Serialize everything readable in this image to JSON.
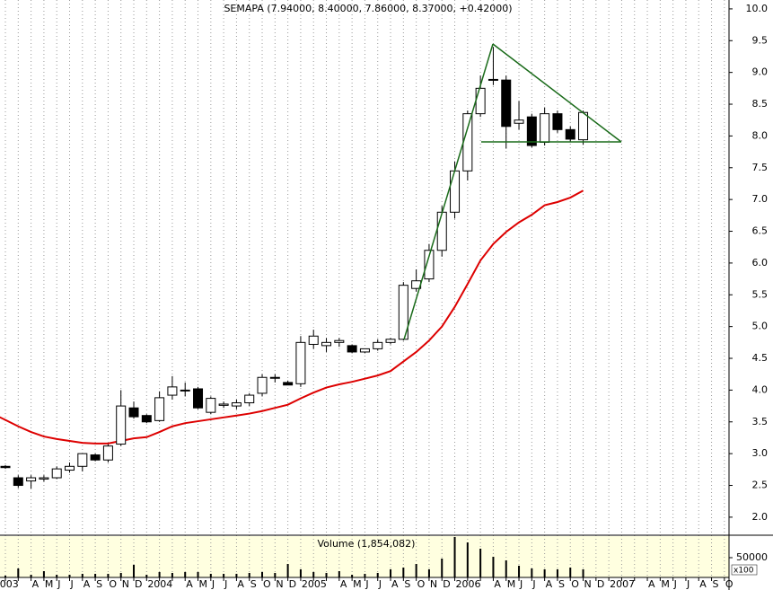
{
  "chart_data": [
    {
      "type": "candlestick",
      "title": "SEMAPA (7.94000, 8.40000, 7.86000, 8.37000, +0.42000)",
      "x": [
        1,
        2,
        3,
        4,
        5,
        6,
        7,
        8,
        9,
        10,
        11,
        12,
        13,
        14,
        15,
        16,
        17,
        18,
        19,
        20,
        21,
        22,
        23,
        24,
        25,
        26,
        27,
        28,
        29,
        30,
        31,
        32,
        33,
        34,
        35,
        36,
        37,
        38,
        39,
        40,
        41,
        42,
        43,
        44,
        45,
        46
      ],
      "open": [
        2.8,
        2.62,
        2.57,
        2.6,
        2.62,
        2.74,
        2.8,
        2.98,
        2.9,
        3.15,
        3.72,
        3.6,
        3.52,
        3.92,
        4.0,
        4.02,
        3.65,
        3.76,
        3.75,
        3.8,
        3.95,
        4.2,
        4.12,
        4.1,
        4.72,
        4.7,
        4.75,
        4.7,
        4.6,
        4.65,
        4.75,
        4.8,
        5.6,
        5.75,
        6.2,
        6.8,
        7.45,
        8.35,
        8.88,
        8.88,
        8.2,
        8.3,
        7.9,
        8.35,
        8.1,
        7.94
      ],
      "high": [
        2.82,
        2.66,
        2.66,
        2.66,
        2.8,
        2.86,
        3.0,
        3.0,
        3.15,
        4.0,
        3.82,
        3.62,
        3.98,
        4.22,
        4.12,
        4.05,
        3.9,
        3.82,
        3.85,
        3.95,
        4.25,
        4.25,
        4.15,
        4.85,
        4.95,
        4.82,
        4.82,
        4.72,
        4.65,
        4.8,
        4.82,
        5.7,
        5.9,
        6.3,
        6.9,
        7.6,
        8.4,
        8.95,
        9.4,
        8.95,
        8.55,
        8.35,
        8.45,
        8.4,
        8.15,
        8.4
      ],
      "low": [
        2.76,
        2.46,
        2.45,
        2.56,
        2.6,
        2.7,
        2.72,
        2.88,
        2.86,
        3.12,
        3.55,
        3.48,
        3.5,
        3.85,
        3.9,
        3.7,
        3.62,
        3.72,
        3.7,
        3.75,
        3.9,
        4.12,
        4.08,
        4.05,
        4.65,
        4.6,
        4.68,
        4.58,
        4.58,
        4.62,
        4.72,
        4.78,
        5.55,
        5.7,
        6.1,
        6.7,
        7.3,
        8.3,
        8.8,
        7.8,
        8.1,
        7.82,
        7.85,
        8.05,
        7.9,
        7.86
      ],
      "close": [
        2.78,
        2.5,
        2.62,
        2.62,
        2.76,
        2.8,
        3.0,
        2.9,
        3.12,
        3.75,
        3.58,
        3.5,
        3.88,
        4.05,
        4.0,
        3.72,
        3.87,
        3.78,
        3.8,
        3.92,
        4.2,
        4.2,
        4.08,
        4.75,
        4.85,
        4.75,
        4.78,
        4.6,
        4.65,
        4.75,
        4.8,
        5.65,
        5.72,
        6.2,
        6.8,
        7.45,
        8.35,
        8.75,
        8.89,
        8.15,
        8.25,
        7.85,
        8.35,
        8.1,
        7.95,
        8.37
      ],
      "moving_average": {
        "color": "#dd0000",
        "x": [
          0,
          1,
          2,
          3,
          4,
          5,
          6,
          7,
          8,
          9,
          10,
          11,
          12,
          13,
          14,
          15,
          16,
          17,
          18,
          19,
          20,
          21,
          22,
          23,
          24,
          25,
          26,
          27,
          28,
          29,
          30,
          31,
          32,
          33,
          34,
          35,
          36,
          37,
          38,
          39,
          40,
          41,
          42,
          43,
          44,
          45,
          46
        ],
        "values": [
          3.63,
          3.53,
          3.43,
          3.34,
          3.27,
          3.23,
          3.2,
          3.17,
          3.16,
          3.16,
          3.2,
          3.24,
          3.26,
          3.34,
          3.43,
          3.48,
          3.51,
          3.54,
          3.57,
          3.6,
          3.63,
          3.67,
          3.72,
          3.77,
          3.87,
          3.96,
          4.04,
          4.09,
          4.13,
          4.18,
          4.23,
          4.3,
          4.45,
          4.6,
          4.78,
          5.0,
          5.31,
          5.67,
          6.04,
          6.3,
          6.49,
          6.64,
          6.76,
          6.91,
          6.96,
          7.03,
          7.14
        ]
      },
      "xlim": [
        0.58,
        57.36
      ],
      "ylim": [
        1.73,
        10.14
      ],
      "yticks": [
        {
          "value": 2,
          "label": "2.0"
        },
        2.5,
        {
          "value": 3,
          "label": "3.0"
        },
        3.5,
        {
          "value": 4,
          "label": "4.0"
        },
        4.5,
        {
          "value": 5,
          "label": "5.0"
        },
        5.5,
        {
          "value": 6,
          "label": "6.0"
        },
        6.5,
        {
          "value": 7,
          "label": "7.0"
        },
        7.5,
        {
          "value": 8,
          "label": "8.0"
        },
        8.5,
        {
          "value": 9,
          "label": "9.0"
        },
        9.5,
        {
          "value": 10,
          "label": "10.0"
        }
      ],
      "grid": true
    },
    {
      "type": "bar",
      "title": "Volume (1,854,082)",
      "unit_label": "x100",
      "color": "#000000",
      "x": [
        1,
        2,
        3,
        4,
        5,
        6,
        7,
        8,
        9,
        10,
        11,
        12,
        13,
        14,
        15,
        16,
        17,
        18,
        19,
        20,
        21,
        22,
        23,
        24,
        25,
        26,
        27,
        28,
        29,
        30,
        31,
        32,
        33,
        34,
        35,
        36,
        37,
        38,
        39,
        40,
        41,
        42,
        43,
        44,
        45,
        46
      ],
      "values": [
        4500,
        22700,
        6800,
        15900,
        6800,
        6800,
        9100,
        9100,
        9100,
        11400,
        31800,
        6800,
        13600,
        11400,
        13600,
        13600,
        9100,
        9100,
        9100,
        11400,
        13600,
        11400,
        34100,
        20500,
        13600,
        11400,
        15900,
        6800,
        9100,
        11400,
        20500,
        25000,
        34100,
        20500,
        47700,
        102300,
        88600,
        72700,
        52300,
        43200,
        29500,
        22700,
        20500,
        20500,
        25000,
        20500
      ],
      "xlim": [
        0.58,
        57.36
      ],
      "ylim": [
        0,
        104500
      ],
      "yticks": [
        50000
      ],
      "xticks": [
        {
          "value": 0,
          "label": "2003"
        },
        {
          "value": 1,
          "label": null
        },
        {
          "value": 2,
          "label": null
        },
        {
          "value": 3,
          "label": "A"
        },
        {
          "value": 4,
          "label": "M"
        },
        {
          "value": 5,
          "label": "J"
        },
        {
          "value": 6,
          "label": "J"
        },
        {
          "value": 7,
          "label": "A"
        },
        {
          "value": 8,
          "label": "S"
        },
        {
          "value": 9,
          "label": "O"
        },
        {
          "value": 10,
          "label": "N"
        },
        {
          "value": 11,
          "label": "D"
        },
        {
          "value": 12,
          "label": "2004"
        },
        {
          "value": 13,
          "label": null
        },
        {
          "value": 14,
          "label": null
        },
        {
          "value": 15,
          "label": "A"
        },
        {
          "value": 16,
          "label": "M"
        },
        {
          "value": 17,
          "label": "J"
        },
        {
          "value": 18,
          "label": "J"
        },
        {
          "value": 19,
          "label": "A"
        },
        {
          "value": 20,
          "label": "S"
        },
        {
          "value": 21,
          "label": "O"
        },
        {
          "value": 22,
          "label": "N"
        },
        {
          "value": 23,
          "label": "D"
        },
        {
          "value": 24,
          "label": "2005"
        },
        {
          "value": 25,
          "label": null
        },
        {
          "value": 26,
          "label": null
        },
        {
          "value": 27,
          "label": "A"
        },
        {
          "value": 28,
          "label": "M"
        },
        {
          "value": 29,
          "label": "J"
        },
        {
          "value": 30,
          "label": "J"
        },
        {
          "value": 31,
          "label": "A"
        },
        {
          "value": 32,
          "label": "S"
        },
        {
          "value": 33,
          "label": "O"
        },
        {
          "value": 34,
          "label": "N"
        },
        {
          "value": 35,
          "label": "D"
        },
        {
          "value": 36,
          "label": "2006"
        },
        {
          "value": 37,
          "label": null
        },
        {
          "value": 38,
          "label": null
        },
        {
          "value": 39,
          "label": "A"
        },
        {
          "value": 40,
          "label": "M"
        },
        {
          "value": 41,
          "label": "J"
        },
        {
          "value": 42,
          "label": "J"
        },
        {
          "value": 43,
          "label": "A"
        },
        {
          "value": 44,
          "label": "S"
        },
        {
          "value": 45,
          "label": "O"
        },
        {
          "value": 46,
          "label": "N"
        },
        {
          "value": 47,
          "label": "D"
        },
        {
          "value": 48,
          "label": "2007"
        },
        {
          "value": 49,
          "label": null
        },
        {
          "value": 50,
          "label": null
        },
        {
          "value": 51,
          "label": "A"
        },
        {
          "value": 52,
          "label": "M"
        },
        {
          "value": 53,
          "label": "J"
        },
        {
          "value": 54,
          "label": "J"
        },
        {
          "value": 55,
          "label": "A"
        },
        {
          "value": 56,
          "label": "S"
        },
        {
          "value": 57,
          "label": "O"
        }
      ],
      "grid": true
    }
  ]
}
